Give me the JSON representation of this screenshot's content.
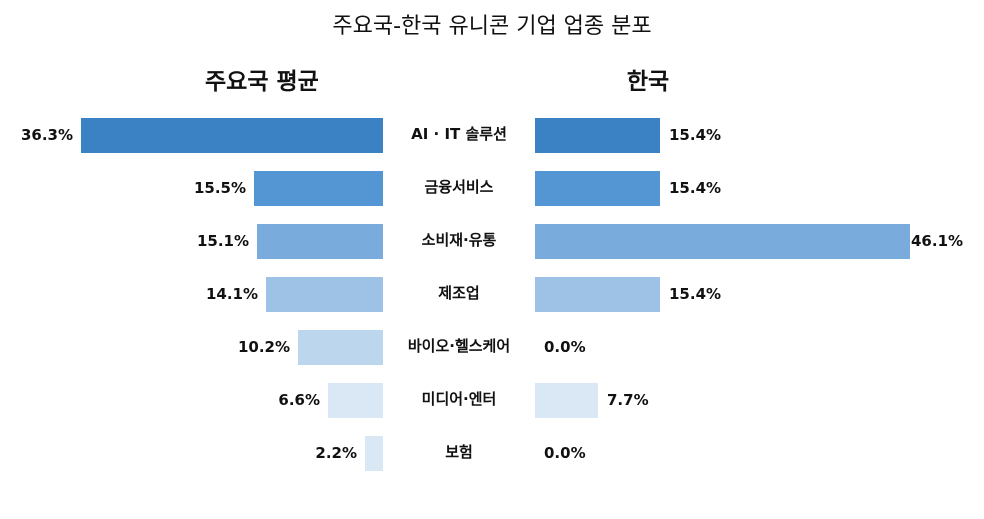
{
  "chart_data": {
    "type": "bar",
    "orientation": "horizontal-butterfly",
    "title": "주요국-한국 유니콘 기업 업종 분포",
    "categories": [
      "AI · IT 솔루션",
      "금융서비스",
      "소비재·유통",
      "제조업",
      "바이오·헬스케어",
      "미디어·엔터",
      "보험"
    ],
    "series": [
      {
        "name": "주요국 평균",
        "values": [
          36.3,
          15.5,
          15.1,
          14.1,
          10.2,
          6.6,
          2.2
        ],
        "labels": [
          "36.3%",
          "15.5%",
          "15.1%",
          "14.1%",
          "10.2%",
          "6.6%",
          "2.2%"
        ]
      },
      {
        "name": "한국",
        "values": [
          15.4,
          15.4,
          46.1,
          15.4,
          0.0,
          7.7,
          0.0
        ],
        "labels": [
          "15.4%",
          "15.4%",
          "46.1%",
          "15.4%",
          "0.0%",
          "7.7%",
          "0.0%"
        ]
      }
    ],
    "unit": "%",
    "colors": [
      "#3b82c4",
      "#5496d3",
      "#79abdc",
      "#9dc2e6",
      "#bcd6ee",
      "#dae7f5",
      "#dae7f5"
    ],
    "xlabel": "",
    "ylabel": "",
    "grid": false,
    "legend": "panel titles above each side"
  },
  "header": {
    "title": "주요국-한국 유니콘 기업 업종 분포",
    "left_panel": "주요국 평균",
    "right_panel": "한국"
  }
}
